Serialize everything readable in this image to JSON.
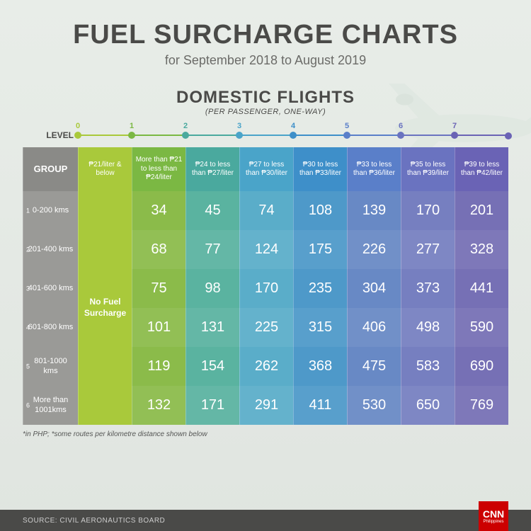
{
  "colors": {
    "title": "#4a4a48",
    "subtitle": "#6b6b68",
    "subheader": "#4a4a48",
    "footer_bg": "#4a4a48",
    "footer_text": "#cccccc",
    "footnote": "#555555",
    "level_label": "#4a4a48"
  },
  "header": {
    "title": "FUEL SURCHARGE CHARTS",
    "subtitle": "for September 2018 to August 2019"
  },
  "subheader": {
    "title": "DOMESTIC FLIGHTS",
    "note": "(PER PASSENGER, ONE-WAY)"
  },
  "levels": {
    "label": "LEVEL",
    "items": [
      {
        "num": "0",
        "color": "#a9c93b"
      },
      {
        "num": "1",
        "color": "#7bb843"
      },
      {
        "num": "2",
        "color": "#4aa99e"
      },
      {
        "num": "3",
        "color": "#4aa4c9"
      },
      {
        "num": "4",
        "color": "#3e8fc9"
      },
      {
        "num": "5",
        "color": "#5a7fc9"
      },
      {
        "num": "6",
        "color": "#6a73c0"
      },
      {
        "num": "7",
        "color": "#6a63b5"
      }
    ]
  },
  "table": {
    "group_header": "GROUP",
    "group_header_bg": "#8a8a87",
    "row_label_bg": "#9a9a97",
    "columns": [
      {
        "header": "₱21/liter & below",
        "bg": "#a9c93b",
        "header_bg": "#a9c93b"
      },
      {
        "header": "More than ₱21 to less than ₱24/liter",
        "bg": "#8bbb4a",
        "header_bg": "#7bb843"
      },
      {
        "header": "₱24 to less than ₱27/liter",
        "bg": "#5ab3a0",
        "header_bg": "#4aa99e"
      },
      {
        "header": "₱27 to less than ₱30/liter",
        "bg": "#5aadc9",
        "header_bg": "#4aa4c9"
      },
      {
        "header": "₱30 to less than ₱33/liter",
        "bg": "#4e99c9",
        "header_bg": "#3e8fc9"
      },
      {
        "header": "₱33 to less than ₱36/liter",
        "bg": "#6889c5",
        "header_bg": "#5a7fc9"
      },
      {
        "header": "₱35 to less than ₱39/liter",
        "bg": "#767fc0",
        "header_bg": "#6a73c0"
      },
      {
        "header": "₱39 to less than ₱42/liter",
        "bg": "#7670b5",
        "header_bg": "#6a63b5"
      }
    ],
    "no_fuel_label": "No Fuel Surcharge",
    "rows": [
      {
        "n": "1",
        "label": "0-200 kms",
        "values": [
          "34",
          "45",
          "74",
          "108",
          "139",
          "170",
          "201"
        ]
      },
      {
        "n": "2",
        "label": "201-400 kms",
        "values": [
          "68",
          "77",
          "124",
          "175",
          "226",
          "277",
          "328"
        ]
      },
      {
        "n": "3",
        "label": "401-600 kms",
        "values": [
          "75",
          "98",
          "170",
          "235",
          "304",
          "373",
          "441"
        ]
      },
      {
        "n": "4",
        "label": "601-800 kms",
        "values": [
          "101",
          "131",
          "225",
          "315",
          "406",
          "498",
          "590"
        ]
      },
      {
        "n": "5",
        "label": "801-1000 kms",
        "values": [
          "119",
          "154",
          "262",
          "368",
          "475",
          "583",
          "690"
        ]
      },
      {
        "n": "6",
        "label": "More than 1001kms",
        "values": [
          "132",
          "171",
          "291",
          "411",
          "530",
          "650",
          "769"
        ]
      }
    ]
  },
  "footnote": "*in PHP; *some routes per kilometre distance shown below",
  "footer": {
    "source": "SOURCE: CIVIL AERONAUTICS BOARD",
    "logo_top": "CNN",
    "logo_bottom": "Philippines"
  }
}
